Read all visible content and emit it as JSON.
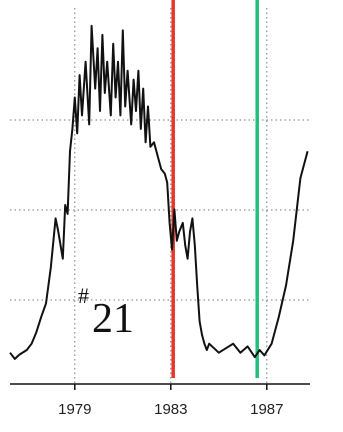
{
  "chart_data": {
    "type": "line",
    "title": "",
    "xlabel": "",
    "ylabel": "",
    "xlim": [
      1976.3,
      1988.8
    ],
    "ylim": [
      0,
      420
    ],
    "grid": "dotted-horizontal-and-vertical",
    "x_ticks": [
      1979,
      1983,
      1987
    ],
    "x_tick_labels": [
      "1979",
      "1983",
      "1987"
    ],
    "annotation": {
      "hash": "#",
      "number": "21"
    },
    "markers": [
      {
        "x": 1983.1,
        "color": "#e8372a"
      },
      {
        "x": 1986.6,
        "color": "#22c07a"
      }
    ],
    "series": [
      {
        "x": [
          1976.3,
          1976.5,
          1976.7,
          1977.0,
          1977.2,
          1977.4,
          1977.6,
          1977.8,
          1978.0,
          1978.2,
          1978.3,
          1978.5,
          1978.6,
          1978.7,
          1978.8,
          1978.9,
          1979.0,
          1979.1,
          1979.2,
          1979.3,
          1979.45,
          1979.6,
          1979.7,
          1979.85,
          1979.95,
          1980.05,
          1980.15,
          1980.25,
          1980.35,
          1980.5,
          1980.6,
          1980.7,
          1980.8,
          1980.9,
          1981.0,
          1981.1,
          1981.2,
          1981.35,
          1981.45,
          1981.55,
          1981.65,
          1981.75,
          1981.85,
          1981.95,
          1982.05,
          1982.15,
          1982.3,
          1982.45,
          1982.6,
          1982.75,
          1982.85,
          1982.95,
          1983.05,
          1983.15,
          1983.25,
          1983.35,
          1983.5,
          1983.6,
          1983.7,
          1983.8,
          1983.9,
          1984.0,
          1984.1,
          1984.2,
          1984.3,
          1984.4,
          1984.5,
          1984.6,
          1984.8,
          1985.0,
          1985.3,
          1985.6,
          1985.9,
          1986.2,
          1986.5,
          1986.7,
          1986.9,
          1987.2,
          1987.5,
          1987.8,
          1988.1,
          1988.4,
          1988.7
        ],
        "values": [
          35,
          28,
          33,
          38,
          45,
          58,
          75,
          90,
          130,
          185,
          172,
          140,
          200,
          190,
          260,
          285,
          320,
          280,
          345,
          300,
          360,
          290,
          400,
          330,
          375,
          305,
          390,
          325,
          360,
          300,
          380,
          320,
          360,
          300,
          395,
          310,
          350,
          290,
          340,
          305,
          350,
          285,
          330,
          270,
          310,
          265,
          270,
          255,
          240,
          235,
          225,
          180,
          150,
          195,
          160,
          170,
          180,
          155,
          140,
          170,
          185,
          155,
          110,
          70,
          55,
          45,
          38,
          45,
          40,
          35,
          40,
          45,
          35,
          42,
          30,
          38,
          32,
          45,
          75,
          110,
          160,
          230,
          260
        ],
        "color": "#111111"
      }
    ]
  }
}
